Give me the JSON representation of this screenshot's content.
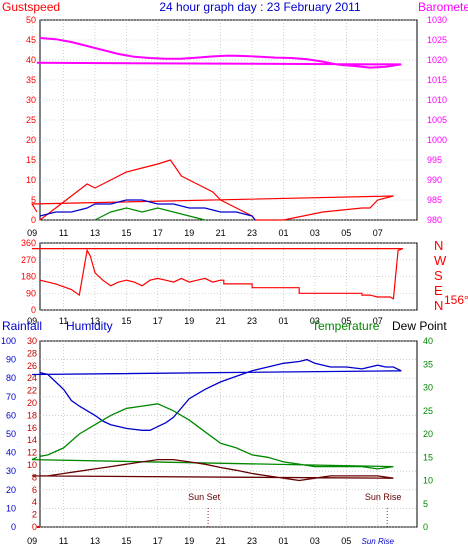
{
  "chart_data": [
    {
      "type": "line",
      "title": "24 hour graph day : 23 February 2011",
      "left_axis_label": "Gustspeed",
      "right_axis_label": "Barometer",
      "left_ticks": [
        "0",
        "5",
        "10",
        "15",
        "20",
        "25",
        "30",
        "35",
        "40",
        "45",
        "50"
      ],
      "right_ticks": [
        "980",
        "985",
        "990",
        "995",
        "1000",
        "1005",
        "1010",
        "1015",
        "1020",
        "1025",
        "1030"
      ],
      "x_ticks": [
        "11",
        "13",
        "15",
        "17",
        "19",
        "21",
        "23",
        "01",
        "03",
        "05",
        "07",
        "09"
      ],
      "ylim_left": [
        0,
        50
      ],
      "ylim_right": [
        980,
        1030
      ],
      "grid": true,
      "colors": {
        "gust": "#ff0000",
        "wind": "#0000cc",
        "green": "#008800",
        "barometer": "#ff00ff",
        "left_axis": "#ff0000",
        "right_axis": "#ff00ff",
        "title": "#0000cc"
      },
      "series": [
        {
          "key": "gust",
          "x": [
            9.5,
            10.5,
            11.5,
            12.5,
            13,
            14,
            15,
            16,
            17,
            17.8,
            18.5,
            19.5,
            20.5,
            21,
            22,
            23,
            23.2,
            1,
            3.5,
            6,
            6.5,
            7,
            8,
            9,
            9.3
          ],
          "values": [
            0,
            3,
            6,
            9,
            8,
            10,
            12,
            13,
            14,
            15,
            11,
            9,
            7,
            5,
            3,
            1,
            0,
            0,
            2,
            3,
            3,
            5,
            6,
            4,
            2
          ]
        },
        {
          "key": "wind",
          "x": [
            9.5,
            10.5,
            11.5,
            12.5,
            13,
            14,
            15,
            16,
            17,
            18,
            19,
            20,
            21,
            22,
            23,
            23.2
          ],
          "values": [
            1,
            2,
            2,
            3,
            4,
            4,
            5,
            5,
            4,
            4,
            3,
            3,
            2,
            2,
            1,
            0
          ]
        },
        {
          "key": "green",
          "x": [
            13,
            14,
            15,
            16,
            17,
            18,
            19,
            20
          ],
          "values": [
            0,
            2,
            3,
            2,
            3,
            2,
            1,
            0
          ]
        },
        {
          "key": "barometer",
          "x": [
            9.5,
            10.5,
            11.5,
            12.5,
            13.5,
            14.5,
            15.5,
            16.5,
            17.5,
            18.5,
            19.5,
            20.5,
            21.5,
            22.5,
            23.5,
            0.5,
            1.5,
            2.5,
            3.5,
            4.5,
            5.5,
            6.5,
            7.5,
            8.5,
            9.3
          ],
          "values": [
            1025.5,
            1025.2,
            1024.5,
            1023.5,
            1022.5,
            1021.5,
            1020.8,
            1020.5,
            1020.3,
            1020.3,
            1020.6,
            1020.9,
            1021.1,
            1021.0,
            1020.8,
            1020.6,
            1020.5,
            1020.2,
            1019.6,
            1018.8,
            1018.5,
            1018.1,
            1018.3,
            1018.9,
            1019.3
          ]
        }
      ]
    },
    {
      "type": "line",
      "left_ticks": [
        "0",
        "90",
        "180",
        "270",
        "360"
      ],
      "right_labels": [
        "N",
        "W",
        "S",
        "E",
        "N"
      ],
      "current_direction": "156°",
      "x_ticks": [
        "11",
        "13",
        "15",
        "17",
        "19",
        "21",
        "23",
        "01",
        "03",
        "05",
        "07",
        "09"
      ],
      "ylim": [
        0,
        360
      ],
      "colors": {
        "direction": "#ff0000",
        "right_labels": "#ff0000"
      },
      "series": [
        {
          "key": "direction",
          "x": [
            9.5,
            10.5,
            11.5,
            12,
            12.5,
            12.7,
            13,
            13.5,
            14,
            14.5,
            15,
            15.5,
            16,
            16.5,
            17,
            17.5,
            18,
            18.5,
            19,
            19.5,
            20,
            20.5,
            21,
            21.2,
            21.2,
            23,
            23,
            2,
            2,
            6,
            6,
            6.5,
            7,
            7.8,
            8,
            8.3,
            8.6,
            9,
            9.3
          ],
          "values": [
            160,
            140,
            110,
            80,
            320,
            290,
            200,
            160,
            130,
            150,
            160,
            150,
            130,
            160,
            170,
            160,
            150,
            170,
            150,
            160,
            170,
            150,
            160,
            160,
            140,
            140,
            120,
            120,
            90,
            90,
            80,
            80,
            70,
            70,
            60,
            320,
            330,
            330,
            330
          ]
        }
      ]
    },
    {
      "type": "line",
      "rainfall_label": "Rainfall",
      "humidity_label": "Humidity",
      "temperature_label": "Temperature",
      "dewpoint_label": "Dew Point",
      "rainfall_ticks": [
        "0",
        "10",
        "20",
        "30",
        "40",
        "50",
        "60",
        "70",
        "80",
        "90",
        "100"
      ],
      "humidity_ticks": [
        "0",
        "2",
        "4",
        "6",
        "8",
        "10",
        "12",
        "14",
        "16",
        "18",
        "20",
        "22",
        "24",
        "26",
        "28",
        "30"
      ],
      "temperature_ticks": [
        "0",
        "5",
        "10",
        "15",
        "20",
        "25",
        "30",
        "35",
        "40"
      ],
      "x_ticks": [
        "11",
        "13",
        "15",
        "17",
        "19",
        "21",
        "23",
        "01",
        "03",
        "05",
        "07",
        "09"
      ],
      "sun_set_label": "Sun Set",
      "sun_rise_label": "Sun Rise",
      "sun_rise_tick": "Sun Rise",
      "sun_rise_index": 10,
      "ylim_rainfall": [
        0,
        100
      ],
      "ylim_humidity": [
        0,
        30
      ],
      "ylim_temperature": [
        0,
        40
      ],
      "grid": true,
      "colors": {
        "humidity": "#0000cc",
        "temperature": "#008800",
        "dewpoint": "#660000",
        "rainfall": "#ff0000",
        "rainfall_axis": "#0000cc",
        "humidity_axis": "#cc0000",
        "temperature_axis": "#008800",
        "dewpoint_label": "#000000"
      },
      "sun_set_x": 20.2,
      "sun_rise_x": 7.6,
      "series": [
        {
          "key": "humidity",
          "x": [
            9.5,
            10,
            11,
            11.5,
            12,
            13,
            13.5,
            14,
            15,
            16,
            16.5,
            17,
            17.5,
            18,
            19,
            20,
            21,
            22,
            23,
            0,
            1,
            2,
            2.5,
            3,
            4,
            5,
            6,
            6.5,
            7,
            7.5,
            8,
            8.5,
            9,
            9.3
          ],
          "values": [
            83,
            82,
            74,
            68,
            65,
            60,
            57,
            55,
            53,
            52,
            52,
            54,
            56,
            59,
            69,
            74,
            78,
            81,
            84,
            86,
            88,
            89,
            90,
            88,
            86,
            86,
            85,
            86,
            87,
            86,
            86,
            84,
            82,
            82
          ]
        },
        {
          "key": "temperature",
          "x": [
            9.5,
            10,
            11,
            12,
            13,
            14,
            15,
            16,
            17,
            18,
            19,
            20,
            21,
            22,
            23,
            0,
            1,
            2,
            3,
            4,
            5,
            6,
            7,
            8,
            9,
            9.3
          ],
          "values": [
            15.2,
            15.5,
            17,
            20,
            22,
            24,
            25.5,
            26,
            26.5,
            25,
            23,
            20.5,
            18,
            17,
            15.5,
            15,
            14,
            13.5,
            13,
            13,
            13,
            13,
            12.5,
            13,
            14.5,
            15
          ]
        },
        {
          "key": "dewpoint",
          "x": [
            9.5,
            10,
            11,
            12,
            13,
            14,
            15,
            16,
            17,
            18,
            19,
            20,
            21,
            22,
            23,
            0,
            1,
            2,
            3,
            4,
            5,
            6,
            7,
            8,
            9,
            9.3
          ],
          "values": [
            11,
            11,
            11.5,
            12,
            12.5,
            13,
            13.5,
            14,
            14.5,
            14.5,
            14,
            13.5,
            12.8,
            12.2,
            11.5,
            11,
            10.5,
            10,
            10.5,
            11,
            11,
            11,
            11,
            10.5,
            11,
            11
          ]
        },
        {
          "key": "rainfall",
          "x": [
            9.5,
            9.3
          ],
          "values": [
            0,
            0
          ]
        }
      ]
    }
  ]
}
